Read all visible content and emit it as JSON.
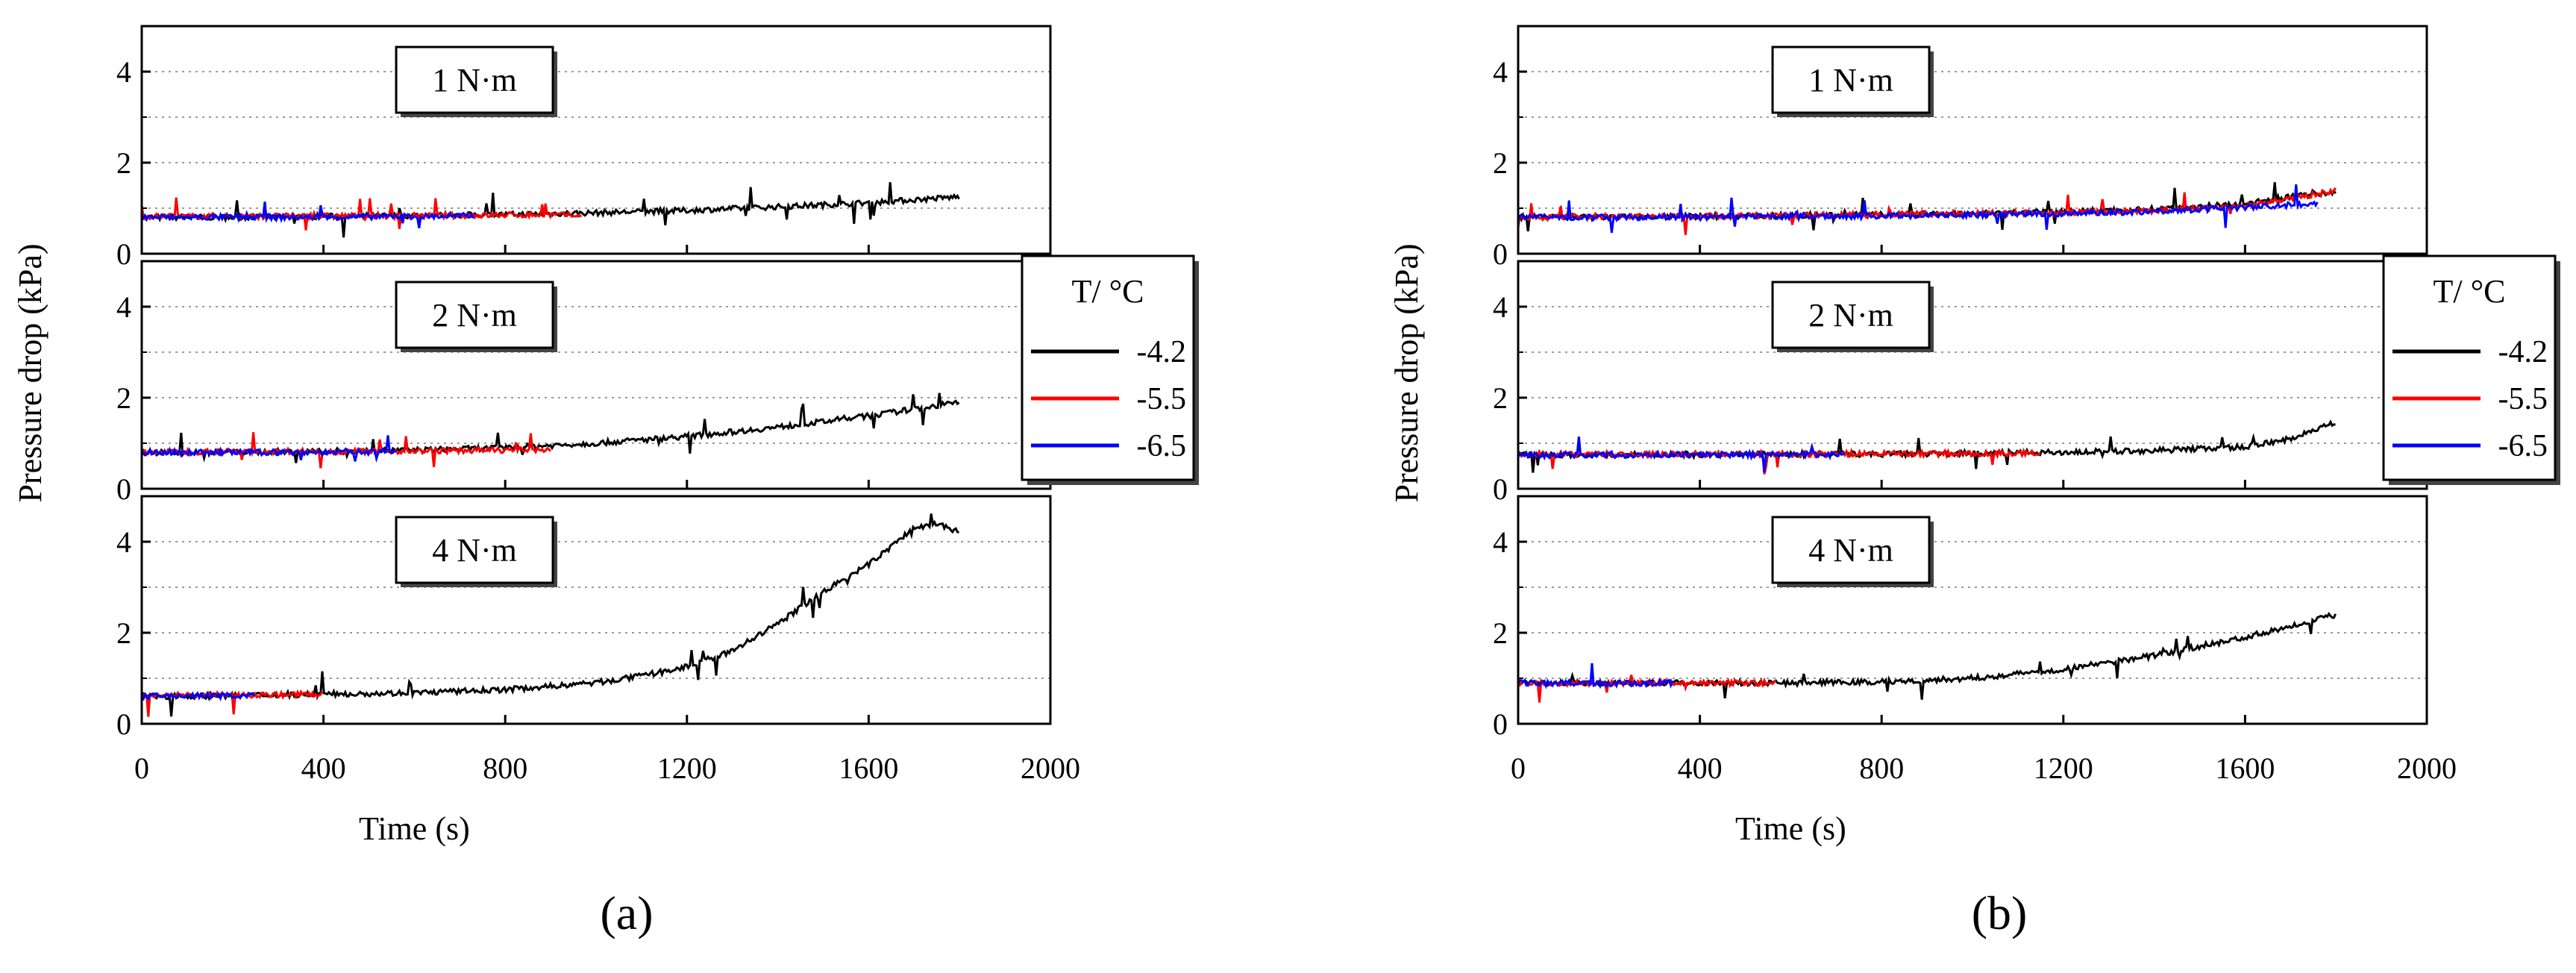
{
  "labels": {
    "a": "(a)",
    "b": "(b)"
  },
  "colors": {
    "-4.2": "#000000",
    "-5.5": "#ff0000",
    "-6.5": "#0000ff",
    "grid": "#9a9a9a"
  },
  "chart_data": [
    {
      "panel": "a",
      "type": "line",
      "xlabel": "Time (s)",
      "ylabel": "Pressure drop (kPa)",
      "xlim": [
        0,
        2000
      ],
      "xticks": [
        0,
        400,
        800,
        1200,
        1600,
        2000
      ],
      "ylim": [
        0,
        5
      ],
      "yticks": [
        0,
        2,
        4
      ],
      "gridlines_y": [
        1,
        2,
        3,
        4
      ],
      "legend": {
        "title": "T/ °C",
        "entries": [
          "-4.2",
          "-5.5",
          "-6.5"
        ],
        "position": "right"
      },
      "subplots": [
        {
          "label": "1 N·m",
          "series": [
            {
              "name": "-4.2",
              "x": [
                0,
                200,
                400,
                600,
                800,
                1000,
                1200,
                1400,
                1600,
                1800
              ],
              "y": [
                0.8,
                0.8,
                0.82,
                0.84,
                0.86,
                0.9,
                0.95,
                1.03,
                1.12,
                1.25
              ]
            },
            {
              "name": "-5.5",
              "x": [
                0,
                200,
                400,
                600,
                800,
                970
              ],
              "y": [
                0.82,
                0.82,
                0.83,
                0.83,
                0.85,
                0.85
              ]
            },
            {
              "name": "-6.5",
              "x": [
                0,
                200,
                400,
                600,
                730
              ],
              "y": [
                0.8,
                0.8,
                0.8,
                0.82,
                0.83
              ]
            }
          ]
        },
        {
          "label": "2 N·m",
          "series": [
            {
              "name": "-4.2",
              "x": [
                0,
                200,
                400,
                600,
                800,
                1000,
                1200,
                1400,
                1600,
                1800
              ],
              "y": [
                0.8,
                0.8,
                0.82,
                0.85,
                0.9,
                1.0,
                1.15,
                1.35,
                1.6,
                1.9
              ]
            },
            {
              "name": "-5.5",
              "x": [
                0,
                200,
                400,
                600,
                800,
                900
              ],
              "y": [
                0.8,
                0.82,
                0.82,
                0.83,
                0.85,
                0.86
              ]
            },
            {
              "name": "-6.5",
              "x": [
                0,
                200,
                400,
                560
              ],
              "y": [
                0.8,
                0.8,
                0.8,
                0.82
              ]
            }
          ]
        },
        {
          "label": "4 N·m",
          "series": [
            {
              "name": "-4.2",
              "x": [
                0,
                200,
                400,
                600,
                800,
                1000,
                1100,
                1200,
                1300,
                1400,
                1500,
                1600,
                1700,
                1750,
                1800
              ],
              "y": [
                0.6,
                0.62,
                0.65,
                0.68,
                0.75,
                0.9,
                1.05,
                1.25,
                1.6,
                2.2,
                2.9,
                3.5,
                4.3,
                4.4,
                4.2
              ]
            },
            {
              "name": "-5.5",
              "x": [
                0,
                200,
                400
              ],
              "y": [
                0.62,
                0.63,
                0.65
              ]
            },
            {
              "name": "-6.5",
              "x": [
                0,
                100,
                250
              ],
              "y": [
                0.6,
                0.62,
                0.62
              ]
            }
          ]
        }
      ]
    },
    {
      "panel": "b",
      "type": "line",
      "xlabel": "Time (s)",
      "ylabel": "Pressure drop (kPa)",
      "xlim": [
        0,
        2000
      ],
      "xticks": [
        0,
        400,
        800,
        1200,
        1600,
        2000
      ],
      "ylim": [
        0,
        5
      ],
      "yticks": [
        0,
        2,
        4
      ],
      "gridlines_y": [
        1,
        2,
        3,
        4
      ],
      "legend": {
        "title": "T/ °C",
        "entries": [
          "-4.2",
          "-5.5",
          "-6.5"
        ],
        "position": "right"
      },
      "subplots": [
        {
          "label": "1 N·m",
          "series": [
            {
              "name": "-4.2",
              "x": [
                0,
                200,
                400,
                600,
                800,
                1000,
                1200,
                1400,
                1600,
                1700,
                1800
              ],
              "y": [
                0.8,
                0.8,
                0.82,
                0.84,
                0.86,
                0.88,
                0.92,
                0.98,
                1.1,
                1.25,
                1.35
              ]
            },
            {
              "name": "-5.5",
              "x": [
                0,
                200,
                400,
                600,
                800,
                1000,
                1200,
                1400,
                1600,
                1700,
                1800
              ],
              "y": [
                0.8,
                0.82,
                0.83,
                0.84,
                0.86,
                0.88,
                0.9,
                0.95,
                1.05,
                1.2,
                1.4
              ]
            },
            {
              "name": "-6.5",
              "x": [
                0,
                200,
                400,
                600,
                800,
                1000,
                1200,
                1400,
                1600,
                1760
              ],
              "y": [
                0.8,
                0.8,
                0.8,
                0.82,
                0.83,
                0.85,
                0.88,
                0.93,
                1.02,
                1.1
              ]
            }
          ]
        },
        {
          "label": "2 N·m",
          "series": [
            {
              "name": "-4.2",
              "x": [
                0,
                200,
                400,
                600,
                800,
                1000,
                1200,
                1400,
                1600,
                1700,
                1800
              ],
              "y": [
                0.75,
                0.75,
                0.75,
                0.76,
                0.76,
                0.78,
                0.8,
                0.84,
                0.92,
                1.1,
                1.45
              ]
            },
            {
              "name": "-5.5",
              "x": [
                0,
                200,
                400,
                600,
                800,
                1000,
                1150
              ],
              "y": [
                0.75,
                0.76,
                0.76,
                0.76,
                0.77,
                0.77,
                0.78
              ]
            },
            {
              "name": "-6.5",
              "x": [
                0,
                200,
                400,
                600,
                720
              ],
              "y": [
                0.74,
                0.74,
                0.75,
                0.75,
                0.75
              ]
            }
          ]
        },
        {
          "label": "4 N·m",
          "series": [
            {
              "name": "-4.2",
              "x": [
                0,
                200,
                400,
                600,
                800,
                1000,
                1200,
                1400,
                1600,
                1800
              ],
              "y": [
                0.9,
                0.9,
                0.9,
                0.9,
                0.92,
                1.0,
                1.2,
                1.5,
                1.9,
                2.4
              ]
            },
            {
              "name": "-5.5",
              "x": [
                0,
                200,
                400,
                570
              ],
              "y": [
                0.9,
                0.9,
                0.9,
                0.9
              ]
            },
            {
              "name": "-6.5",
              "x": [
                0,
                200,
                340
              ],
              "y": [
                0.9,
                0.88,
                0.9
              ]
            }
          ]
        }
      ]
    }
  ]
}
